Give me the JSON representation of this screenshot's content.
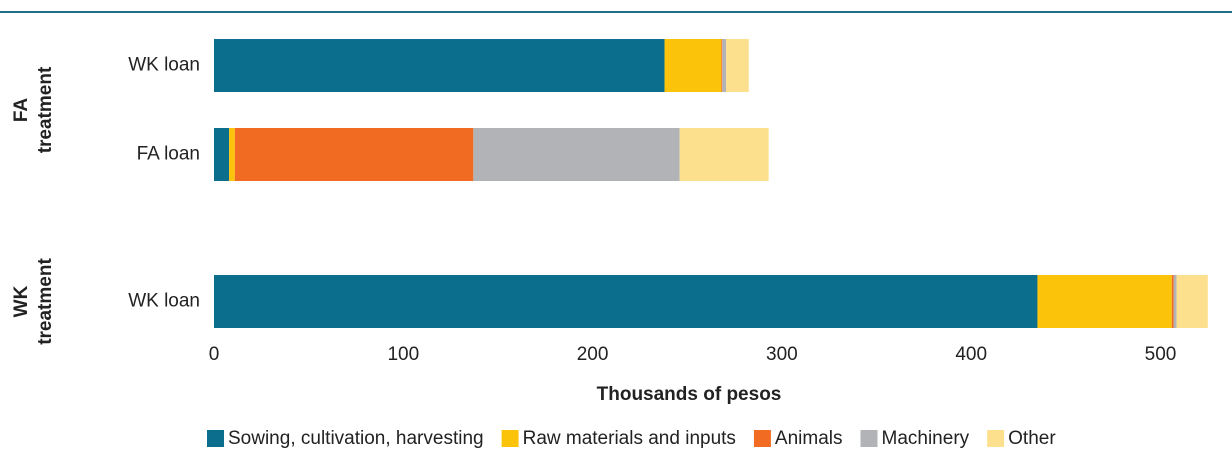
{
  "chart_data": {
    "type": "stacked-barh",
    "xlabel": "Thousands of pesos",
    "groups": [
      {
        "name": [
          "FA",
          "treatment"
        ],
        "categories": [
          "WK loan",
          "FA loan"
        ]
      },
      {
        "name": [
          "WK",
          "treatment"
        ],
        "categories": [
          "WK loan"
        ]
      }
    ],
    "series": [
      {
        "name": "Sowing, cultivation, harvesting",
        "color": "#0a6e8c",
        "values": [
          238,
          8,
          435
        ]
      },
      {
        "name": "Raw materials and inputs",
        "color": "#fcc30b",
        "values": [
          30,
          3,
          71
        ]
      },
      {
        "name": "Animals",
        "color": "#f26b22",
        "values": [
          0.5,
          126,
          1
        ]
      },
      {
        "name": "Machinery",
        "color": "#b1b3b6",
        "values": [
          2,
          109,
          1.5
        ]
      },
      {
        "name": "Other",
        "color": "#fde08e",
        "values": [
          12,
          47,
          16.5
        ]
      }
    ],
    "xlim": [
      0,
      530
    ],
    "xticks": [
      0,
      100,
      200,
      300,
      400,
      500
    ]
  }
}
